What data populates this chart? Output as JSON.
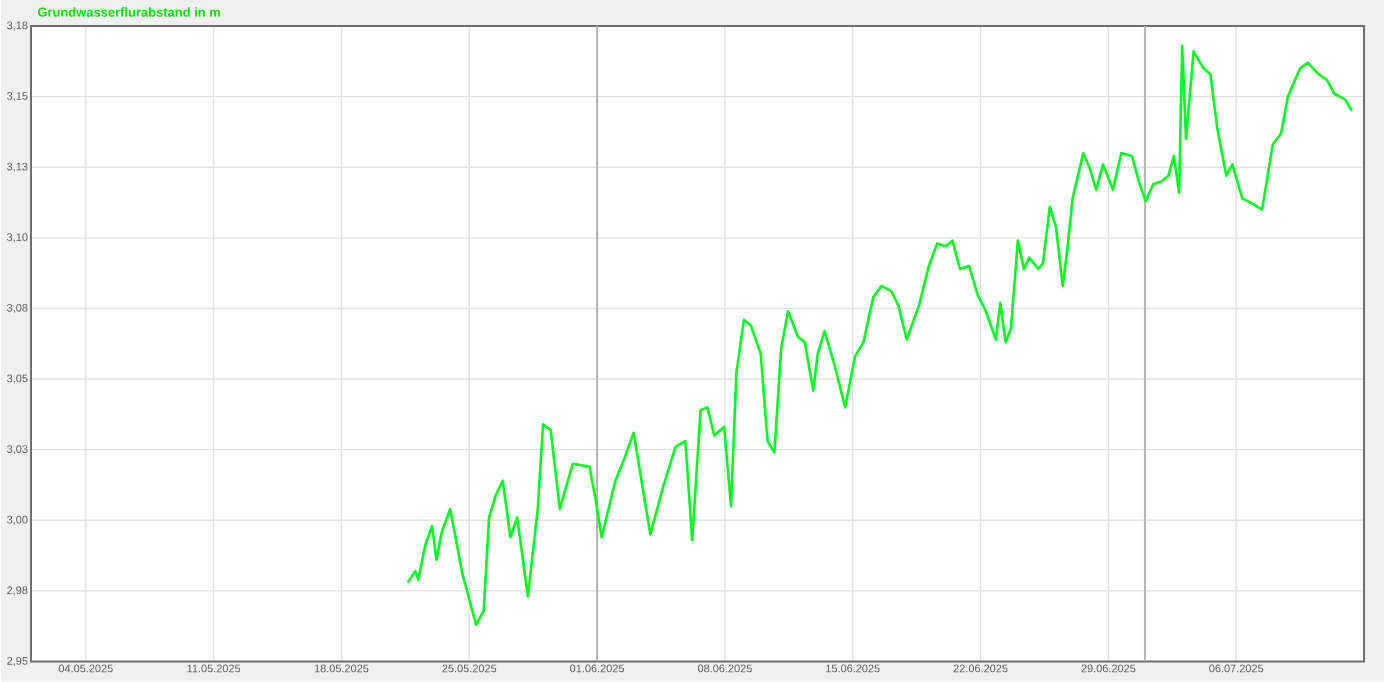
{
  "chart_data": {
    "type": "line",
    "title": "Grundwasserflurabstand in m",
    "x": [
      "2025-05-21T15:00",
      "2025-05-22T01:00",
      "2025-05-22T05:00",
      "2025-05-22T14:00",
      "2025-05-22T23:00",
      "2025-05-23T05:00",
      "2025-05-23T12:00",
      "2025-05-23T23:00",
      "2025-05-24T15:00",
      "2025-05-25T09:00",
      "2025-05-25T19:00",
      "2025-05-26T02:00",
      "2025-05-26T11:00",
      "2025-05-26T20:00",
      "2025-05-27T06:00",
      "2025-05-27T15:00",
      "2025-05-28T05:00",
      "2025-05-28T18:00",
      "2025-05-29T01:00",
      "2025-05-29T11:00",
      "2025-05-29T23:00",
      "2025-05-30T16:00",
      "2025-05-31T14:00",
      "2025-05-31T23:00",
      "2025-06-01T06:00",
      "2025-06-02T00:00",
      "2025-06-02T12:00",
      "2025-06-03T00:00",
      "2025-06-03T22:00",
      "2025-06-04T05:00",
      "2025-06-04T15:00",
      "2025-06-05T07:00",
      "2025-06-05T20:00",
      "2025-06-06T05:00",
      "2025-06-06T16:00",
      "2025-06-07T01:00",
      "2025-06-07T10:00",
      "2025-06-07T23:00",
      "2025-06-08T08:00",
      "2025-06-08T15:00",
      "2025-06-09T01:00",
      "2025-06-09T10:00",
      "2025-06-09T23:00",
      "2025-06-10T08:00",
      "2025-06-10T17:00",
      "2025-06-11T02:00",
      "2025-06-11T11:00",
      "2025-06-12T00:00",
      "2025-06-12T09:00",
      "2025-06-12T20:00",
      "2025-06-13T02:00",
      "2025-06-13T11:00",
      "2025-06-14T00:00",
      "2025-06-14T14:00",
      "2025-06-15T03:00",
      "2025-06-15T14:00",
      "2025-06-16T03:00",
      "2025-06-16T14:00",
      "2025-06-17T03:00",
      "2025-06-17T12:00",
      "2025-06-17T23:00",
      "2025-06-18T15:00",
      "2025-06-19T04:00",
      "2025-06-19T15:00",
      "2025-06-20T02:00",
      "2025-06-20T11:00",
      "2025-06-20T21:00",
      "2025-06-21T09:00",
      "2025-06-21T20:00",
      "2025-06-22T07:00",
      "2025-06-22T20:00",
      "2025-06-23T02:00",
      "2025-06-23T09:00",
      "2025-06-23T16:00",
      "2025-06-24T01:00",
      "2025-06-24T09:00",
      "2025-06-24T16:00",
      "2025-06-25T04:00",
      "2025-06-25T10:00",
      "2025-06-25T19:00",
      "2025-06-26T03:00",
      "2025-06-26T12:00",
      "2025-06-26T18:00",
      "2025-06-27T01:00",
      "2025-06-27T15:00",
      "2025-06-27T23:00",
      "2025-06-28T08:00",
      "2025-06-28T17:00",
      "2025-06-29T06:00",
      "2025-06-29T17:00",
      "2025-06-30T07:00",
      "2025-06-30T16:00",
      "2025-07-01T01:00",
      "2025-07-01T11:00",
      "2025-07-01T22:00",
      "2025-07-02T07:00",
      "2025-07-02T14:00",
      "2025-07-02T21:00",
      "2025-07-03T01:00",
      "2025-07-03T06:00",
      "2025-07-03T16:00",
      "2025-07-04T05:00",
      "2025-07-04T14:00",
      "2025-07-04T23:00",
      "2025-07-05T11:00",
      "2025-07-05T19:00",
      "2025-07-06T08:00",
      "2025-07-06T22:00",
      "2025-07-07T10:00",
      "2025-07-08T00:00",
      "2025-07-08T11:00",
      "2025-07-08T20:00",
      "2025-07-09T12:00",
      "2025-07-09T22:00",
      "2025-07-10T12:00",
      "2025-07-10T23:00",
      "2025-07-11T09:00",
      "2025-07-11T23:00",
      "2025-07-12T08:00"
    ],
    "series": [
      {
        "color": "#00ff1e",
        "values": [
          2.978,
          2.982,
          2.979,
          2.991,
          2.998,
          2.986,
          2.996,
          3.004,
          2.981,
          2.963,
          2.968,
          3.001,
          3.009,
          3.014,
          2.994,
          3.001,
          2.973,
          3.004,
          3.034,
          3.032,
          3.004,
          3.02,
          3.019,
          3.006,
          2.994,
          3.014,
          3.022,
          3.031,
          2.995,
          3.002,
          3.012,
          3.026,
          3.028,
          2.993,
          3.039,
          3.04,
          3.03,
          3.033,
          3.005,
          3.052,
          3.071,
          3.069,
          3.059,
          3.028,
          3.024,
          3.061,
          3.074,
          3.065,
          3.063,
          3.046,
          3.059,
          3.067,
          3.055,
          3.04,
          3.058,
          3.063,
          3.079,
          3.083,
          3.081,
          3.076,
          3.064,
          3.076,
          3.09,
          3.098,
          3.097,
          3.099,
          3.089,
          3.09,
          3.08,
          3.074,
          3.064,
          3.077,
          3.063,
          3.068,
          3.099,
          3.089,
          3.093,
          3.089,
          3.091,
          3.111,
          3.104,
          3.083,
          3.096,
          3.114,
          3.13,
          3.125,
          3.117,
          3.126,
          3.117,
          3.13,
          3.129,
          3.12,
          3.113,
          3.119,
          3.12,
          3.122,
          3.129,
          3.116,
          3.168,
          3.135,
          3.166,
          3.16,
          3.158,
          3.139,
          3.122,
          3.126,
          3.114,
          3.112,
          3.11,
          3.133,
          3.137,
          3.15,
          3.16,
          3.162,
          3.158,
          3.156,
          3.151,
          3.149,
          3.145
        ]
      }
    ],
    "xlim": [
      "2025-05-01",
      "2025-07-13"
    ],
    "ylim": [
      2.95,
      3.175
    ],
    "xticks": [
      {
        "value": "2025-05-04",
        "label": "04.05.2025"
      },
      {
        "value": "2025-05-11",
        "label": "11.05.2025"
      },
      {
        "value": "2025-05-18",
        "label": "18.05.2025"
      },
      {
        "value": "2025-05-25",
        "label": "25.05.2025"
      },
      {
        "value": "2025-06-01",
        "label": "01.06.2025"
      },
      {
        "value": "2025-06-08",
        "label": "08.06.2025"
      },
      {
        "value": "2025-06-15",
        "label": "15.06.2025"
      },
      {
        "value": "2025-06-22",
        "label": "22.06.2025"
      },
      {
        "value": "2025-06-29",
        "label": "29.06.2025"
      },
      {
        "value": "2025-07-06",
        "label": "06.07.2025"
      }
    ],
    "yticks": [
      {
        "value": 2.95,
        "label": "2,95"
      },
      {
        "value": 2.975,
        "label": "2,98"
      },
      {
        "value": 3.0,
        "label": "3,00"
      },
      {
        "value": 3.025,
        "label": "3,03"
      },
      {
        "value": 3.05,
        "label": "3,05"
      },
      {
        "value": 3.075,
        "label": "3,08"
      },
      {
        "value": 3.1,
        "label": "3,10"
      },
      {
        "value": 3.125,
        "label": "3,13"
      },
      {
        "value": 3.15,
        "label": "3,15"
      },
      {
        "value": 3.175,
        "label": "3,18"
      }
    ],
    "grid": true,
    "ref_lines": [
      {
        "axis": "x",
        "value": "2025-06-01",
        "color": "#b4b4b4"
      },
      {
        "axis": "x",
        "value": "2025-07-01",
        "color": "#b4b4b4"
      }
    ]
  }
}
